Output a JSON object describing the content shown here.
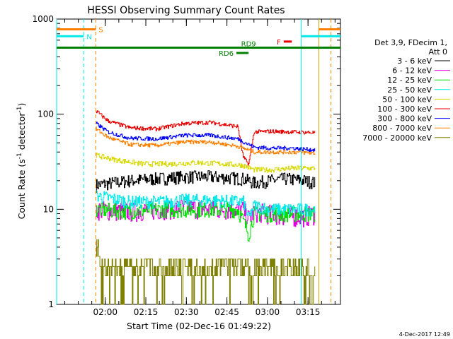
{
  "chart_data": {
    "type": "line",
    "title": "HESSI Observing Summary Count Rates",
    "xlabel": "Start Time (02-Dec-16 01:49:22)",
    "ylabel_main": "Count Rate (s",
    "ylabel_sup1": "-1",
    "ylabel_mid": " detector",
    "ylabel_sup2": "-1",
    "ylabel_end": ")",
    "yscale": "log",
    "xlim_minutes": [
      -7,
      98
    ],
    "ylim": [
      1,
      1000
    ],
    "x_ticks": [
      {
        "label": "02:00",
        "minute": 11
      },
      {
        "label": "02:15",
        "minute": 26
      },
      {
        "label": "02:30",
        "minute": 41
      },
      {
        "label": "02:45",
        "minute": 56
      },
      {
        "label": "03:00",
        "minute": 71
      },
      {
        "label": "03:15",
        "minute": 86
      }
    ],
    "y_ticks": [
      {
        "label": "1",
        "value": 1
      },
      {
        "label": "10",
        "value": 10
      },
      {
        "label": "100",
        "value": 100
      },
      {
        "label": "1000",
        "value": 1000
      }
    ],
    "legend": {
      "position": "right",
      "header": [
        "Det 3,9, FDecim 1,",
        "Att 0"
      ],
      "entries": [
        {
          "label": "3 - 6 keV",
          "color": "#000000"
        },
        {
          "label": "6 - 12 keV",
          "color": "#e000e0"
        },
        {
          "label": "12 - 25 keV",
          "color": "#00e000"
        },
        {
          "label": "25 - 50 keV",
          "color": "#00e8e8"
        },
        {
          "label": "50 - 100 keV",
          "color": "#d8d800"
        },
        {
          "label": "100 - 300 keV",
          "color": "#e80000"
        },
        {
          "label": "300 - 800 keV",
          "color": "#0000ff"
        },
        {
          "label": "800 - 7000 keV",
          "color": "#ff8000"
        },
        {
          "label": "7000 - 20000 keV",
          "color": "#808000"
        }
      ]
    },
    "series": [
      {
        "name": "3 - 6 keV",
        "color": "#000000",
        "x": [
          7.5,
          20,
          30,
          40,
          50,
          62,
          66,
          72,
          78,
          85,
          88.5
        ],
        "y": [
          18,
          20,
          21,
          22,
          22,
          21,
          19,
          20,
          21,
          20,
          19
        ],
        "noise": 0.1
      },
      {
        "name": "6 - 12 keV",
        "color": "#e000e0",
        "x": [
          7.5,
          20,
          30,
          40,
          50,
          62,
          64,
          66,
          72,
          78,
          85,
          88.5
        ],
        "y": [
          10,
          9.5,
          10,
          10.5,
          10,
          10,
          8,
          9.5,
          9,
          8.5,
          8.5,
          9
        ],
        "noise": 0.15
      },
      {
        "name": "12 - 25 keV",
        "color": "#00e000",
        "x": [
          7.5,
          20,
          30,
          40,
          50,
          60,
          62,
          64,
          66,
          72,
          80,
          88.5
        ],
        "y": [
          10,
          9.5,
          10,
          10,
          10,
          10,
          7.5,
          5.5,
          9,
          9,
          9,
          9
        ],
        "noise": 0.12
      },
      {
        "name": "25 - 50 keV",
        "color": "#00e8e8",
        "x": [
          7.5,
          20,
          30,
          40,
          50,
          62,
          64,
          66,
          72,
          80,
          88.5
        ],
        "y": [
          14,
          12,
          12,
          12.5,
          12.5,
          12,
          8,
          11,
          10,
          10,
          10
        ],
        "noise": 0.1
      },
      {
        "name": "50 - 100 keV",
        "color": "#d8d800",
        "x": [
          7.5,
          15,
          25,
          35,
          45,
          55,
          62,
          66,
          72,
          80,
          88.5
        ],
        "y": [
          37,
          33,
          30,
          30,
          31,
          30,
          29,
          26,
          26,
          27,
          27
        ],
        "noise": 0.04
      },
      {
        "name": "100 - 300 keV",
        "color": "#e80000",
        "x": [
          7.5,
          12,
          20,
          30,
          40,
          50,
          60,
          62,
          64,
          66,
          72,
          80,
          88.5
        ],
        "y": [
          108,
          85,
          72,
          70,
          80,
          82,
          74,
          35,
          30,
          65,
          66,
          65,
          64
        ],
        "noise": 0.03
      },
      {
        "name": "300 - 800 keV",
        "color": "#0000ff",
        "x": [
          7.5,
          12,
          20,
          30,
          40,
          50,
          60,
          66,
          72,
          80,
          88.5
        ],
        "y": [
          80,
          65,
          56,
          55,
          60,
          60,
          55,
          45,
          44,
          44,
          42
        ],
        "noise": 0.03
      },
      {
        "name": "800 - 7000 keV",
        "color": "#ff8000",
        "x": [
          7.5,
          12,
          20,
          30,
          40,
          50,
          60,
          66,
          72,
          80,
          88.5
        ],
        "y": [
          70,
          57,
          48,
          47,
          51,
          51,
          46,
          40,
          40,
          40,
          39
        ],
        "noise": 0.03
      },
      {
        "name": "7000 - 20000 keV",
        "color": "#808000",
        "x": [
          7.5,
          15,
          25,
          35,
          45,
          55,
          65,
          75,
          85,
          88.5
        ],
        "y": [
          2.6,
          2.5,
          2.5,
          2.5,
          2.6,
          2.6,
          2.5,
          2.5,
          2.5,
          2.5
        ],
        "noise": 0.0,
        "levels": [
          2.0,
          2.5,
          3.0
        ]
      }
    ],
    "vertical_lines": [
      {
        "minute": -7,
        "color": "#00e8e8",
        "style": "solid"
      },
      {
        "minute": 3,
        "color": "#00e8e8",
        "style": "dashed"
      },
      {
        "minute": 7.5,
        "color": "#ff8000",
        "style": "dashed"
      },
      {
        "minute": 83.5,
        "color": "#00e8e8",
        "style": "solid"
      },
      {
        "minute": 90,
        "color": "#c8a000",
        "style": "solid"
      },
      {
        "minute": 94.5,
        "color": "#ff8000",
        "style": "dashed"
      }
    ],
    "flags": [
      {
        "label": "S",
        "color": "#ff8000",
        "x_start": -7,
        "x_end": 7.5,
        "y": 780,
        "label_side": "right"
      },
      {
        "label": "N",
        "color": "#00e8e8",
        "x_start": -7,
        "x_end": 3,
        "y": 660,
        "label_side": "right"
      },
      {
        "label": "",
        "color": "#ff8000",
        "x_start": 90,
        "x_end": 98,
        "y": 780,
        "label_side": "none"
      },
      {
        "label": "",
        "color": "#00e8e8",
        "x_start": 83.5,
        "x_end": 98,
        "y": 660,
        "label_side": "none"
      },
      {
        "label": "F",
        "color": "#e80000",
        "x_start": 77,
        "x_end": 80,
        "y": 580,
        "label_side": "left"
      },
      {
        "label": "RD9",
        "color": "#008000",
        "x_start": -7,
        "x_end": 98,
        "y": 500,
        "label_side": "above_mid"
      },
      {
        "label": "RD6",
        "color": "#008000",
        "x_start": 59.5,
        "x_end": 64,
        "y": 440,
        "label_side": "left"
      }
    ],
    "timestamp": "4-Dec-2017 12:49"
  }
}
